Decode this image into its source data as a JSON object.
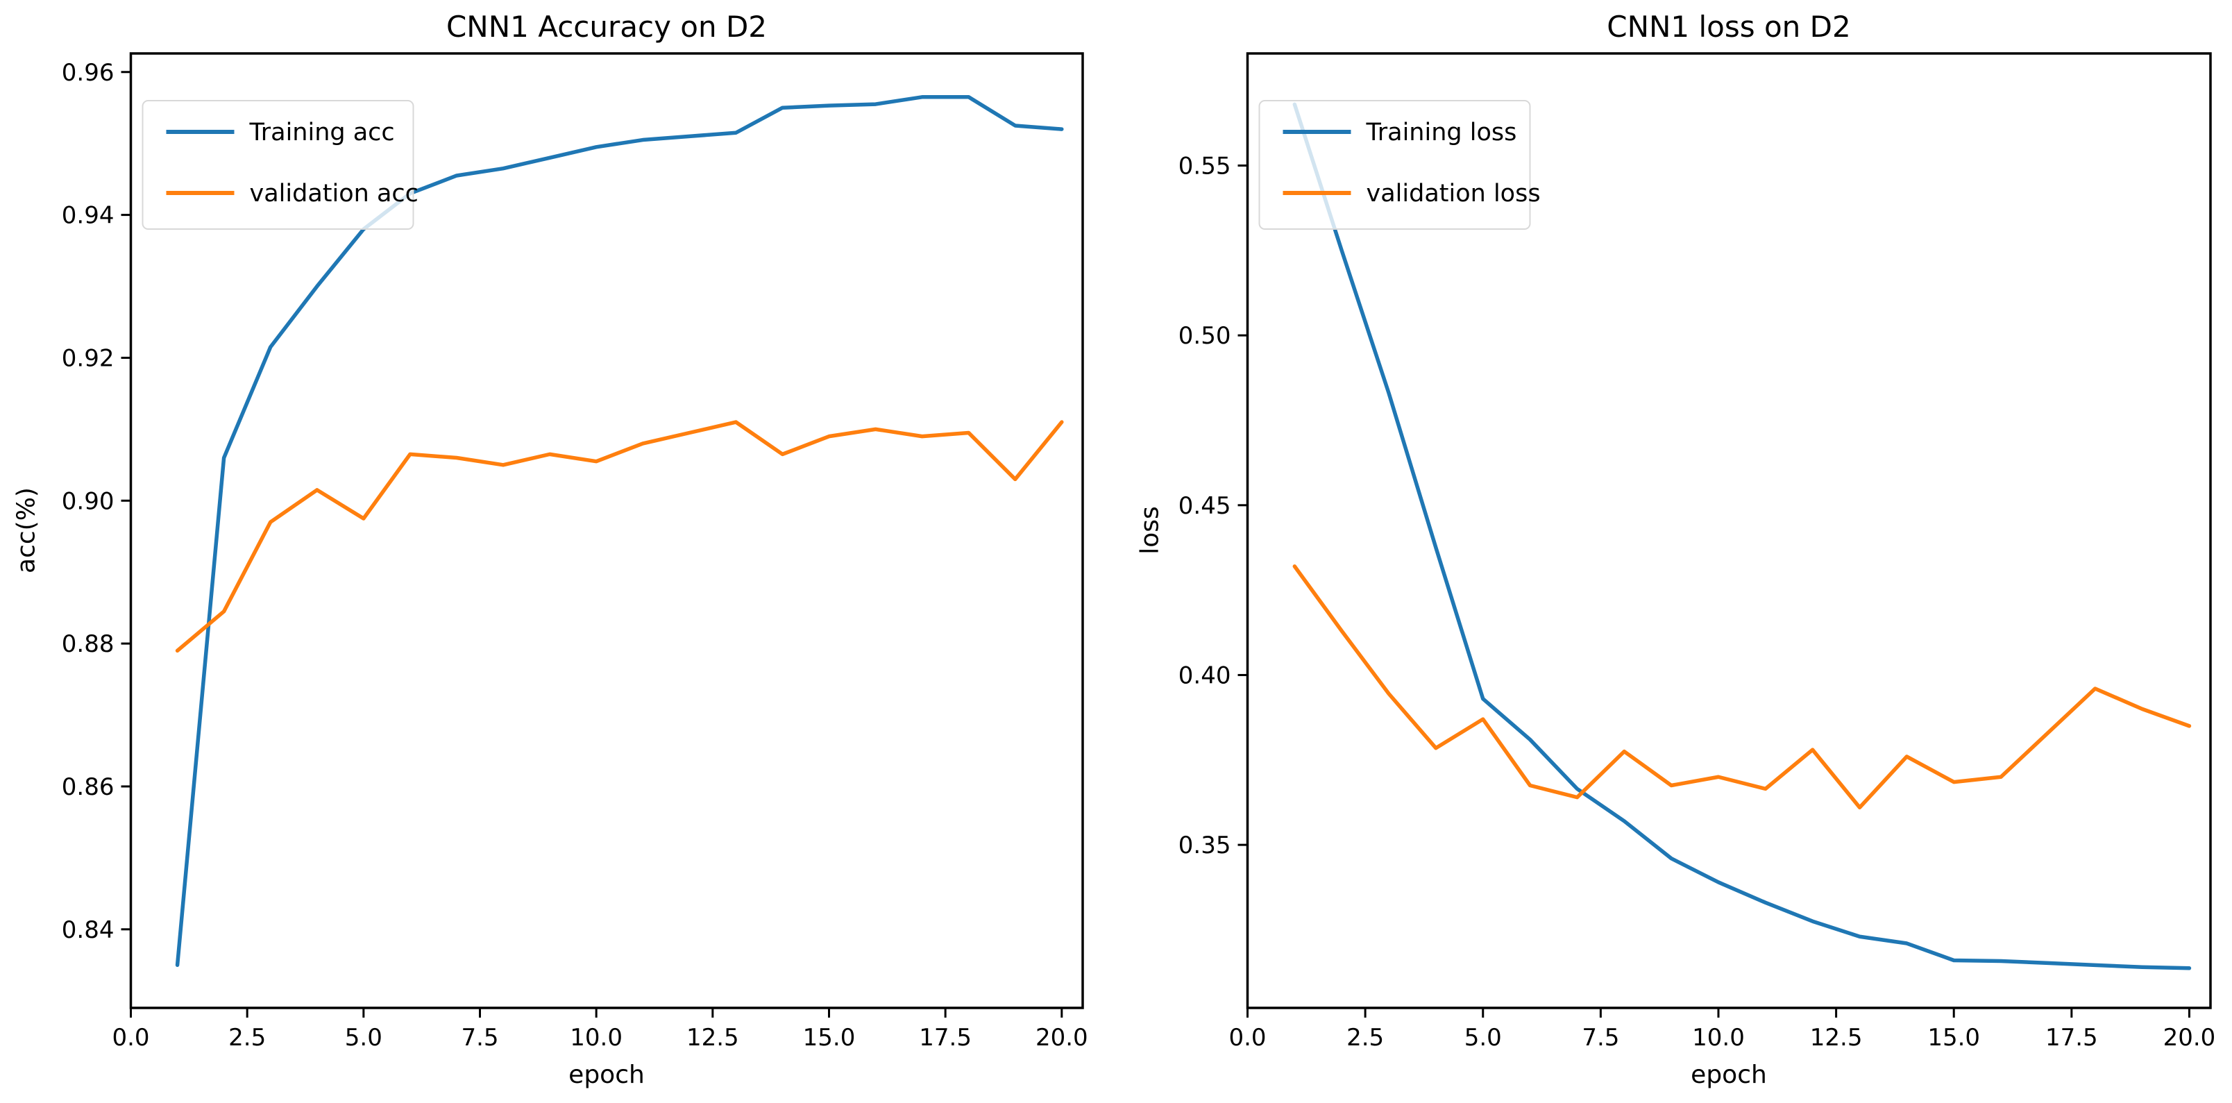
{
  "figure": {
    "background": "#ffffff"
  },
  "colors": {
    "training_series": "#1f77b4",
    "validation_series": "#ff7f0e",
    "spine": "#000000",
    "text": "#000000",
    "legend_border": "#d8d8d8",
    "legend_fill": "rgba(255,255,255,0.8)"
  },
  "chart_data": [
    {
      "type": "line",
      "title": "CNN1 Accuracy on D2",
      "xlabel": "epoch",
      "ylabel": "acc(%)",
      "x": [
        1,
        2,
        3,
        4,
        5,
        6,
        7,
        8,
        9,
        10,
        11,
        12,
        13,
        14,
        15,
        16,
        17,
        18,
        19,
        20
      ],
      "series": [
        {
          "name": "Training acc",
          "color": "#1f77b4",
          "values": [
            0.835,
            0.906,
            0.9215,
            0.93,
            0.938,
            0.943,
            0.9455,
            0.9465,
            0.948,
            0.9495,
            0.9505,
            0.951,
            0.9515,
            0.955,
            0.9553,
            0.9555,
            0.9565,
            0.9565,
            0.9525,
            0.952
          ]
        },
        {
          "name": "validation acc",
          "color": "#ff7f0e",
          "values": [
            0.879,
            0.8845,
            0.897,
            0.9015,
            0.8975,
            0.9065,
            0.906,
            0.905,
            0.9065,
            0.9055,
            0.908,
            0.9095,
            0.911,
            0.9065,
            0.909,
            0.91,
            0.909,
            0.9095,
            0.903,
            0.911
          ]
        }
      ],
      "xlim": [
        0,
        20.45
      ],
      "ylim": [
        0.829,
        0.9626
      ],
      "xticks": [
        0,
        2.5,
        5,
        7.5,
        10,
        12.5,
        15,
        17.5,
        20
      ],
      "xtick_labels": [
        "0.0",
        "2.5",
        "5.0",
        "7.5",
        "10.0",
        "12.5",
        "15.0",
        "17.5",
        "20.0"
      ],
      "yticks": [
        0.84,
        0.86,
        0.88,
        0.9,
        0.92,
        0.94,
        0.96
      ],
      "ytick_labels": [
        "0.84",
        "0.86",
        "0.88",
        "0.90",
        "0.92",
        "0.94",
        "0.96"
      ],
      "legend_position": "upper left",
      "grid": false
    },
    {
      "type": "line",
      "title": "CNN1 loss on D2",
      "xlabel": "epoch",
      "ylabel": "loss",
      "x": [
        1,
        2,
        3,
        4,
        5,
        6,
        7,
        8,
        9,
        10,
        11,
        12,
        13,
        14,
        15,
        16,
        17,
        18,
        19,
        20
      ],
      "series": [
        {
          "name": "Training loss",
          "color": "#1f77b4",
          "values": [
            0.568,
            0.525,
            0.483,
            0.4375,
            0.393,
            0.381,
            0.3665,
            0.357,
            0.346,
            0.339,
            0.333,
            0.3275,
            0.323,
            0.321,
            0.316,
            0.3158,
            0.3152,
            0.3146,
            0.314,
            0.3137
          ]
        },
        {
          "name": "validation loss",
          "color": "#ff7f0e",
          "values": [
            0.432,
            0.413,
            0.3945,
            0.3785,
            0.387,
            0.3675,
            0.364,
            0.3775,
            0.3675,
            0.37,
            0.3665,
            0.378,
            0.361,
            0.376,
            0.3685,
            0.37,
            0.383,
            0.396,
            0.39,
            0.385
          ]
        }
      ],
      "xlim": [
        0,
        20.45
      ],
      "ylim": [
        0.302,
        0.583
      ],
      "xticks": [
        0,
        2.5,
        5,
        7.5,
        10,
        12.5,
        15,
        17.5,
        20
      ],
      "xtick_labels": [
        "0.0",
        "2.5",
        "5.0",
        "7.5",
        "10.0",
        "12.5",
        "15.0",
        "17.5",
        "20.0"
      ],
      "yticks": [
        0.35,
        0.4,
        0.45,
        0.5,
        0.55
      ],
      "ytick_labels": [
        "0.35",
        "0.40",
        "0.45",
        "0.50",
        "0.55"
      ],
      "legend_position": "upper left",
      "grid": false
    }
  ]
}
